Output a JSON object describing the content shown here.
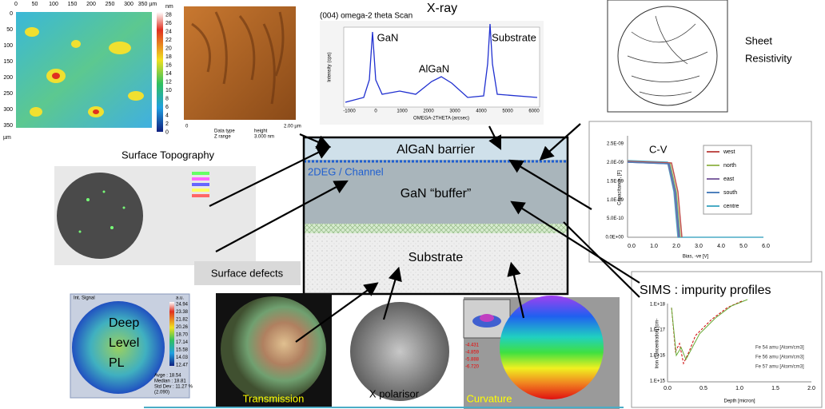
{
  "afm_map": {
    "x_ticks": [
      "0",
      "50",
      "100",
      "150",
      "200",
      "250",
      "300",
      "350 µm"
    ],
    "y_ticks": [
      "0",
      "50",
      "100",
      "150",
      "200",
      "250",
      "300",
      "350"
    ],
    "unit": "µm",
    "colorbar": [
      "nm",
      "28",
      "26",
      "24",
      "22",
      "20",
      "18",
      "16",
      "14",
      "12",
      "10",
      "8",
      "6",
      "4",
      "2",
      "0"
    ]
  },
  "afm_height": {
    "info": [
      "Data type",
      "Z range",
      "height",
      "3.000 nm"
    ],
    "scale": [
      "0",
      "2.00 µm"
    ]
  },
  "xray": {
    "title": "X-ray",
    "subtitle": "(004) omega-2 theta Scan",
    "peaks": [
      "GaN",
      "AlGaN",
      "Substrate"
    ],
    "x_ticks": [
      "-1000",
      "0",
      "1000",
      "2000",
      "3000",
      "4000",
      "5000",
      "6000"
    ],
    "x_label": "OMEGA-2THETA (arcsec)",
    "y_label": "Intensity (cps)"
  },
  "sheet_resistivity": {
    "label": [
      "Sheet",
      "Resistivity"
    ]
  },
  "surface_topography": {
    "label": "Surface Topography"
  },
  "stack": {
    "barrier": "AlGaN barrier",
    "channel": "2DEG / Channel",
    "buffer": "GaN “buffer”",
    "substrate": "Substrate"
  },
  "surface_defects": {
    "label": "Surface defects"
  },
  "cv": {
    "title": "C-V",
    "y_label": "Capacitance, [F]",
    "x_label": "Bias, -ve [V]",
    "y_ticks": [
      "2.5E-09",
      "2.0E-09",
      "1.5E-09",
      "1.0E-09",
      "5.0E-10",
      "0.0E+00"
    ],
    "x_ticks": [
      "0.0",
      "1.0",
      "2.0",
      "3.0",
      "4.0",
      "5.0",
      "6.0"
    ],
    "legend": [
      "west",
      "north",
      "east",
      "south",
      "centre"
    ]
  },
  "sims": {
    "title": "SIMS : impurity profiles",
    "y_label": "Iron Concentration [cm-",
    "x_label": "Depth [micron]",
    "y_ticks": [
      "1.E+18",
      "1.E+17",
      "1.E+16",
      "1.E+15"
    ],
    "x_ticks": [
      "0.0",
      "0.5",
      "1.0",
      "1.5",
      "2.0"
    ],
    "legend": [
      "Fe 54 amu [Atom/cm3]",
      "Fe 56 amu [Atom/cm3]",
      "Fe 57 amu [Atom/cm3]"
    ]
  },
  "deep_level_pl": {
    "label": [
      "Deep",
      "Level",
      "PL"
    ],
    "header": "Int. Signal",
    "unit": "a.u.",
    "scale": [
      "24.94",
      "23.38",
      "21.82",
      "20.26",
      "18.70",
      "17.14",
      "15.58",
      "14.03",
      "12.47"
    ],
    "stats": [
      "Avge : 18.54",
      "Median : 18.81",
      "Std Dev : 11.27 %",
      "(2.090)"
    ]
  },
  "transmission": {
    "label": "Transmission"
  },
  "x_polarisor": {
    "label": "X polarisor"
  },
  "curvature": {
    "label": "Curvature",
    "scale": [
      "-4.431",
      "-4.859",
      "-5.888",
      "-6.720"
    ]
  }
}
